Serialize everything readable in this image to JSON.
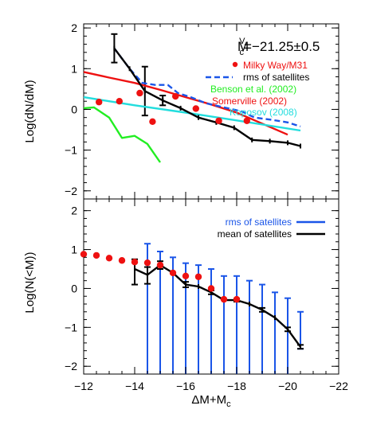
{
  "figure": {
    "xlabel": "ΔM+M",
    "xlabel_sub": "c",
    "xlim": [
      -12,
      -22
    ],
    "xticks": [
      "−12",
      "−14",
      "−16",
      "−18",
      "−20",
      "−22"
    ]
  },
  "chart_data": [
    {
      "type": "line",
      "panel": "top",
      "ylabel": "Log(dN/dM)",
      "ylim": [
        -2.2,
        2.1
      ],
      "yticks": [
        "2",
        "1",
        "0",
        "−1",
        "−2"
      ],
      "xlim": [
        -12,
        -22
      ],
      "annotation": {
        "main": "M",
        "sup": "V",
        "sub": "c",
        "rest": "=−21.25±0.5"
      },
      "legend_position": "top-right",
      "legend": [
        {
          "label": "Milky Way/M31",
          "color": "#ee1111",
          "style": "dot"
        },
        {
          "label": "rms of satellites",
          "color": "#1a55e8",
          "style": "dashed"
        },
        {
          "label": "Benson et al. (2002)",
          "color": "#22ee22",
          "style": "none"
        },
        {
          "label": "Somerville (2002)",
          "color": "#ee1111",
          "style": "none"
        },
        {
          "label": "Koposov (2008)",
          "color": "#22dddd",
          "style": "none"
        }
      ],
      "series": [
        {
          "name": "Benson et al. (2002)",
          "color": "#22ee22",
          "width": 2.4,
          "x": [
            -12,
            -12.4,
            -13,
            -13.5,
            -14,
            -14.5,
            -15
          ],
          "y": [
            0.03,
            0.05,
            -0.2,
            -0.7,
            -0.65,
            -0.85,
            -1.3
          ]
        },
        {
          "name": "Somerville (2002)",
          "color": "#ee1111",
          "width": 2.4,
          "x": [
            -12,
            -13,
            -14,
            -15,
            -16,
            -17,
            -18,
            -19,
            -20
          ],
          "y": [
            0.92,
            0.78,
            0.65,
            0.48,
            0.3,
            0.12,
            -0.08,
            -0.35,
            -0.62
          ]
        },
        {
          "name": "Koposov (2008)",
          "color": "#22dddd",
          "width": 2.4,
          "x": [
            -12,
            -14,
            -16,
            -18,
            -20.5
          ],
          "y": [
            0.3,
            0.1,
            -0.08,
            -0.27,
            -0.52
          ]
        },
        {
          "name": "rms of satellites",
          "color": "#1a55e8",
          "width": 2.4,
          "dash": "7,4",
          "x": [
            -13.2,
            -13.8,
            -14.3,
            -14.8,
            -15.3,
            -15.7,
            -16.2,
            -16.8,
            -17.5,
            -18.2,
            -18.7,
            -19.3,
            -20,
            -20.5
          ],
          "y": [
            1.5,
            1.0,
            0.65,
            0.6,
            0.6,
            0.4,
            0.3,
            0.15,
            0.05,
            -0.05,
            -0.2,
            -0.25,
            -0.32,
            -0.42
          ]
        },
        {
          "name": "mean of satellites",
          "color": "#000000",
          "width": 2.4,
          "x": [
            -13.2,
            -13.8,
            -14.4,
            -15.1,
            -15.8,
            -16.5,
            -17.2,
            -17.9,
            -18.6,
            -19.3,
            -20,
            -20.5
          ],
          "y": [
            1.5,
            1.0,
            0.45,
            0.22,
            0.03,
            -0.2,
            -0.32,
            -0.45,
            -0.75,
            -0.78,
            -0.82,
            -0.9
          ]
        }
      ],
      "points": [
        {
          "name": "Milky Way/M31",
          "color": "#ee1111",
          "x": [
            -12.6,
            -13.4,
            -14.2,
            -14.7,
            -15.6,
            -16.4,
            -17.3,
            -18.4
          ],
          "y": [
            0.18,
            0.2,
            0.4,
            -0.3,
            0.32,
            0.02,
            -0.28,
            -0.28
          ]
        }
      ],
      "errorbars": [
        {
          "color": "#000000",
          "x": [
            -13.2,
            -14.4,
            -15.1
          ],
          "y": [
            1.5,
            0.45,
            0.22
          ],
          "err": [
            0.35,
            0.6,
            0.12
          ]
        }
      ]
    },
    {
      "type": "line",
      "panel": "bottom",
      "ylabel": "Log(N(<M))",
      "ylim": [
        -2.2,
        2.3
      ],
      "yticks": [
        "2",
        "1",
        "0",
        "−1",
        "−2"
      ],
      "xlim": [
        -12,
        -22
      ],
      "legend_position": "top-right",
      "legend": [
        {
          "label": "rms of satellites",
          "color": "#1a55e8",
          "style": "solid"
        },
        {
          "label": "mean of satellites",
          "color": "#000000",
          "style": "solid"
        }
      ],
      "series": [
        {
          "name": "mean of satellites",
          "color": "#000000",
          "width": 2.4,
          "x": [
            -14,
            -14.5,
            -15,
            -15.5,
            -16,
            -16.5,
            -17,
            -17.5,
            -18,
            -18.5,
            -19,
            -19.5,
            -20,
            -20.5
          ],
          "y": [
            0.5,
            0.35,
            0.6,
            0.4,
            0.1,
            0.05,
            -0.1,
            -0.3,
            -0.3,
            -0.4,
            -0.55,
            -0.75,
            -1.05,
            -1.5
          ]
        }
      ],
      "points": [
        {
          "name": "Milky Way/M31",
          "color": "#ee1111",
          "x": [
            -12,
            -12.5,
            -13,
            -13.5,
            -14,
            -14.5,
            -15,
            -15.5,
            -16,
            -16.5,
            -17,
            -17.5,
            -18
          ],
          "y": [
            0.88,
            0.85,
            0.78,
            0.72,
            0.68,
            0.66,
            0.6,
            0.4,
            0.32,
            0.3,
            0.0,
            -0.28,
            -0.28
          ]
        }
      ],
      "errorbars": [
        {
          "color": "#1a55e8",
          "x": [
            -14.5,
            -15,
            -15.5,
            -16,
            -16.5,
            -17,
            -17.5,
            -18,
            -18.5,
            -19,
            -19.5,
            -20,
            -20.5
          ],
          "y": [
            -0.5,
            -0.55,
            -0.6,
            -0.65,
            -0.65,
            -0.7,
            -0.7,
            -0.75,
            -0.8,
            -0.85,
            -0.9,
            -0.95,
            -1.1
          ],
          "lo": [
            -3.0,
            -2.6,
            -2.5,
            -2.6,
            -2.6,
            -2.7,
            -2.55,
            -2.6,
            -2.6,
            -2.5,
            -2.4,
            -2.3,
            -1.55
          ],
          "hi": [
            1.15,
            0.95,
            0.8,
            0.65,
            0.6,
            0.5,
            0.32,
            0.32,
            0.2,
            0.1,
            -0.1,
            -0.25,
            -0.6
          ]
        },
        {
          "color": "#000000",
          "x": [
            -14,
            -14.5,
            -15,
            -16,
            -17,
            -18,
            -19,
            -20,
            -20.5
          ],
          "y": [
            0.5,
            0.35,
            0.6,
            0.1,
            -0.1,
            -0.3,
            -0.55,
            -1.05,
            -1.5
          ],
          "lo": [
            0.1,
            0.12,
            0.5,
            0.03,
            -0.15,
            -0.34,
            -0.6,
            -1.1,
            -1.55
          ],
          "hi": [
            0.75,
            0.55,
            0.7,
            0.17,
            -0.05,
            -0.26,
            -0.5,
            -1.0,
            -1.45
          ]
        }
      ]
    }
  ]
}
